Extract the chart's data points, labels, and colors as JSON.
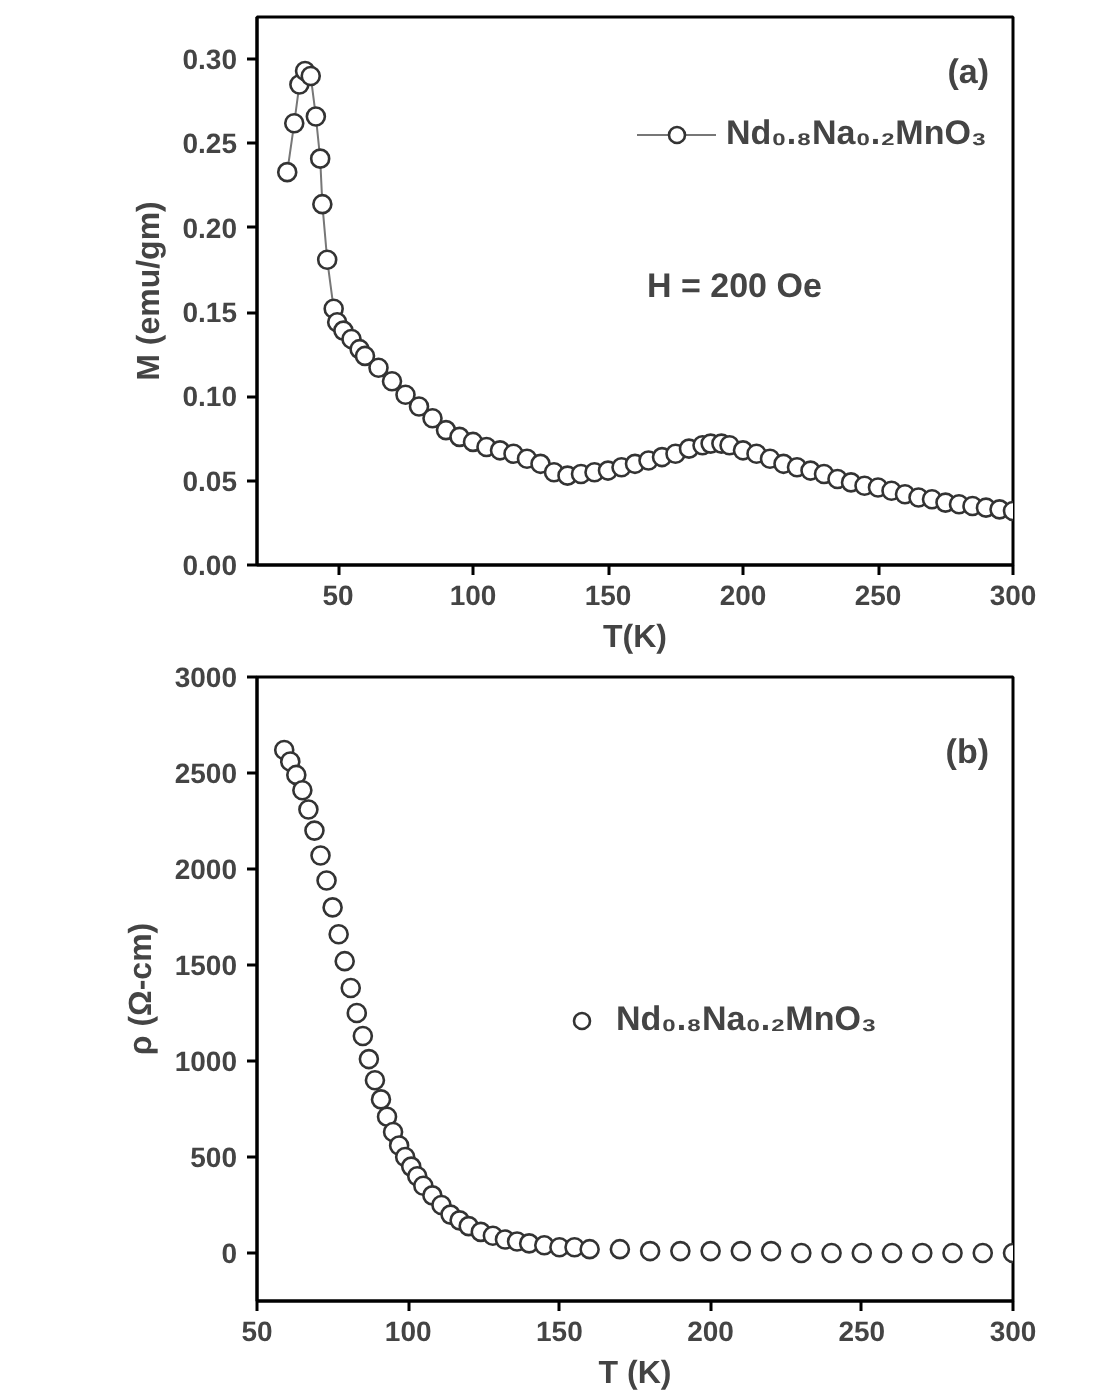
{
  "chart_data": [
    {
      "type": "line",
      "xlabel": "T(K)",
      "ylabel": "M (emu/gm)",
      "annotations": [
        "(a)",
        "H = 200 Oe"
      ],
      "marker": "circle",
      "legend": "top right",
      "grid": false,
      "x": [
        31.2,
        33.8,
        35.7,
        37.8,
        39.9,
        41.8,
        43.4,
        44.2,
        46.0,
        48.4,
        49.7,
        52,
        55,
        58,
        60,
        65,
        70,
        75,
        80,
        85,
        90,
        95,
        100,
        105,
        110,
        115,
        120,
        125,
        130,
        135,
        140,
        145,
        150,
        155,
        160,
        165,
        170,
        175,
        180,
        185,
        188,
        192,
        195,
        200,
        205,
        210,
        215,
        220,
        225,
        230,
        235,
        240,
        245,
        250,
        255,
        260,
        265,
        270,
        275,
        280,
        285,
        290,
        295,
        300
      ],
      "series": [
        {
          "name": "Nd₀.₈Na₀.₂MnO₃",
          "color": "#333333",
          "values": [
            0.233,
            0.262,
            0.285,
            0.293,
            0.29,
            0.266,
            0.241,
            0.214,
            0.181,
            0.152,
            0.144,
            0.139,
            0.134,
            0.128,
            0.124,
            0.117,
            0.109,
            0.101,
            0.094,
            0.087,
            0.08,
            0.076,
            0.073,
            0.07,
            0.068,
            0.066,
            0.063,
            0.06,
            0.055,
            0.053,
            0.054,
            0.055,
            0.056,
            0.058,
            0.06,
            0.062,
            0.064,
            0.066,
            0.069,
            0.071,
            0.072,
            0.072,
            0.071,
            0.068,
            0.066,
            0.063,
            0.06,
            0.058,
            0.056,
            0.054,
            0.051,
            0.049,
            0.047,
            0.046,
            0.044,
            0.042,
            0.04,
            0.039,
            0.037,
            0.036,
            0.035,
            0.034,
            0.033,
            0.032
          ]
        }
      ],
      "xlim": [
        20,
        300
      ],
      "xticks": [
        50,
        100,
        150,
        200,
        250,
        300
      ],
      "ylim": [
        0,
        0.325
      ],
      "yticks": [
        {
          "value": 0,
          "label": "0.00"
        },
        0.05,
        {
          "value": 0.1,
          "label": "0.10"
        },
        0.15,
        {
          "value": 0.2,
          "label": "0.20"
        },
        0.25,
        {
          "value": 0.3,
          "label": "0.30"
        }
      ]
    },
    {
      "type": "scatter",
      "xlabel": "T (K)",
      "ylabel": "ρ (Ω-cm)",
      "annotations": [
        "(b)"
      ],
      "marker": "circle",
      "legend": "right",
      "grid": false,
      "x": [
        59,
        61,
        63,
        65,
        67,
        69,
        71,
        73,
        75,
        77,
        79,
        81,
        83,
        85,
        87,
        89,
        91,
        93,
        95,
        97,
        99,
        101,
        103,
        105,
        108,
        111,
        114,
        117,
        120,
        124,
        128,
        132,
        136,
        140,
        145,
        150,
        155,
        160,
        170,
        180,
        190,
        200,
        210,
        220,
        230,
        240,
        250,
        260,
        270,
        280,
        290,
        300
      ],
      "series": [
        {
          "name": "Nd₀.₈Na₀.₂MnO₃",
          "color": "#333333",
          "values": [
            2620,
            2560,
            2490,
            2410,
            2310,
            2200,
            2070,
            1940,
            1800,
            1660,
            1520,
            1380,
            1250,
            1130,
            1010,
            900,
            800,
            710,
            630,
            560,
            500,
            450,
            400,
            350,
            300,
            250,
            200,
            170,
            140,
            110,
            90,
            70,
            60,
            50,
            40,
            30,
            30,
            20,
            20,
            10,
            10,
            10,
            10,
            10,
            0,
            0,
            0,
            0,
            0,
            0,
            0,
            0
          ]
        }
      ],
      "xlim": [
        50,
        300
      ],
      "xticks": [
        50,
        100,
        150,
        200,
        250,
        300
      ],
      "ylim": [
        -250,
        3000
      ],
      "yticks": [
        0,
        500,
        1000,
        1500,
        2000,
        2500,
        3000
      ]
    }
  ]
}
